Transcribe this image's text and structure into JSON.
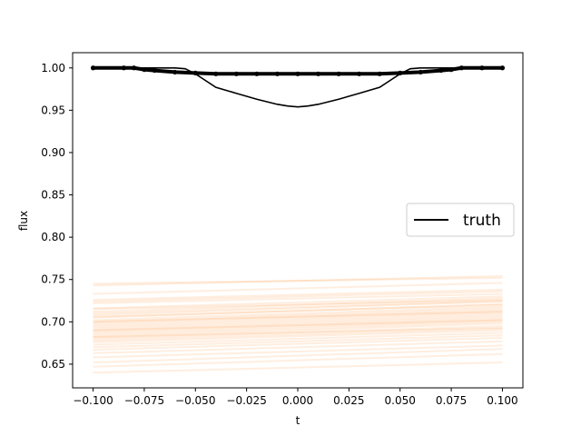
{
  "chart_data": {
    "type": "line",
    "title": "",
    "xlabel": "t",
    "ylabel": "flux",
    "xlim": [
      -0.11,
      0.11
    ],
    "ylim": [
      0.622,
      1.018
    ],
    "xticks": [
      -0.1,
      -0.075,
      -0.05,
      -0.025,
      0.0,
      0.025,
      0.05,
      0.075,
      0.1
    ],
    "xtick_labels": [
      "−0.100",
      "−0.075",
      "−0.050",
      "−0.025",
      "0.000",
      "0.025",
      "0.050",
      "0.075",
      "0.100"
    ],
    "yticks": [
      0.65,
      0.7,
      0.75,
      0.8,
      0.85,
      0.9,
      0.95,
      1.0
    ],
    "ytick_labels": [
      "0.65",
      "0.70",
      "0.75",
      "0.80",
      "0.85",
      "0.90",
      "0.95",
      "1.00"
    ],
    "grid": false,
    "legend": {
      "position": "center-right",
      "entries": [
        "truth"
      ]
    },
    "colors": {
      "truth": "#000000",
      "samples": "#ff7f0e",
      "observed": "#000000"
    },
    "truth": {
      "name": "truth",
      "x": [
        -0.1,
        -0.09,
        -0.08,
        -0.07,
        -0.06,
        -0.055,
        -0.05,
        -0.045,
        -0.04,
        -0.03,
        -0.02,
        -0.01,
        -0.005,
        0.0,
        0.005,
        0.01,
        0.02,
        0.03,
        0.04,
        0.045,
        0.05,
        0.055,
        0.06,
        0.07,
        0.08,
        0.09,
        0.1
      ],
      "y": [
        1.0,
        1.0,
        1.0,
        1.0,
        1.0,
        0.999,
        0.993,
        0.985,
        0.977,
        0.97,
        0.963,
        0.957,
        0.955,
        0.954,
        0.955,
        0.957,
        0.963,
        0.97,
        0.977,
        0.985,
        0.993,
        0.999,
        1.0,
        1.0,
        1.0,
        1.0,
        1.0
      ]
    },
    "observed": {
      "x": [
        -0.1,
        -0.085,
        -0.08,
        -0.075,
        -0.07,
        -0.06,
        -0.05,
        -0.04,
        -0.03,
        -0.02,
        -0.01,
        0.0,
        0.01,
        0.02,
        0.03,
        0.04,
        0.05,
        0.06,
        0.07,
        0.075,
        0.08,
        0.09,
        0.1
      ],
      "y": [
        1.0,
        1.0,
        1.0,
        0.998,
        0.997,
        0.995,
        0.994,
        0.993,
        0.993,
        0.993,
        0.993,
        0.993,
        0.993,
        0.993,
        0.993,
        0.993,
        0.994,
        0.995,
        0.997,
        0.998,
        1.0,
        1.0,
        1.0
      ]
    },
    "samples": [
      [
        0.743,
        0.754
      ],
      [
        0.745,
        0.752
      ],
      [
        0.733,
        0.746
      ],
      [
        0.726,
        0.738
      ],
      [
        0.724,
        0.736
      ],
      [
        0.722,
        0.733
      ],
      [
        0.716,
        0.73
      ],
      [
        0.712,
        0.728
      ],
      [
        0.71,
        0.725
      ],
      [
        0.708,
        0.724
      ],
      [
        0.705,
        0.721
      ],
      [
        0.702,
        0.718
      ],
      [
        0.7,
        0.716
      ],
      [
        0.698,
        0.714
      ],
      [
        0.696,
        0.712
      ],
      [
        0.694,
        0.71
      ],
      [
        0.692,
        0.708
      ],
      [
        0.69,
        0.706
      ],
      [
        0.688,
        0.704
      ],
      [
        0.686,
        0.702
      ],
      [
        0.684,
        0.7
      ],
      [
        0.682,
        0.698
      ],
      [
        0.68,
        0.695
      ],
      [
        0.678,
        0.692
      ],
      [
        0.676,
        0.69
      ],
      [
        0.673,
        0.687
      ],
      [
        0.67,
        0.684
      ],
      [
        0.667,
        0.681
      ],
      [
        0.663,
        0.677
      ],
      [
        0.658,
        0.672
      ],
      [
        0.652,
        0.668
      ],
      [
        0.647,
        0.662
      ],
      [
        0.64,
        0.652
      ],
      [
        0.7,
        0.712
      ],
      [
        0.706,
        0.72
      ],
      [
        0.69,
        0.702
      ],
      [
        0.682,
        0.693
      ],
      [
        0.715,
        0.726
      ]
    ]
  }
}
